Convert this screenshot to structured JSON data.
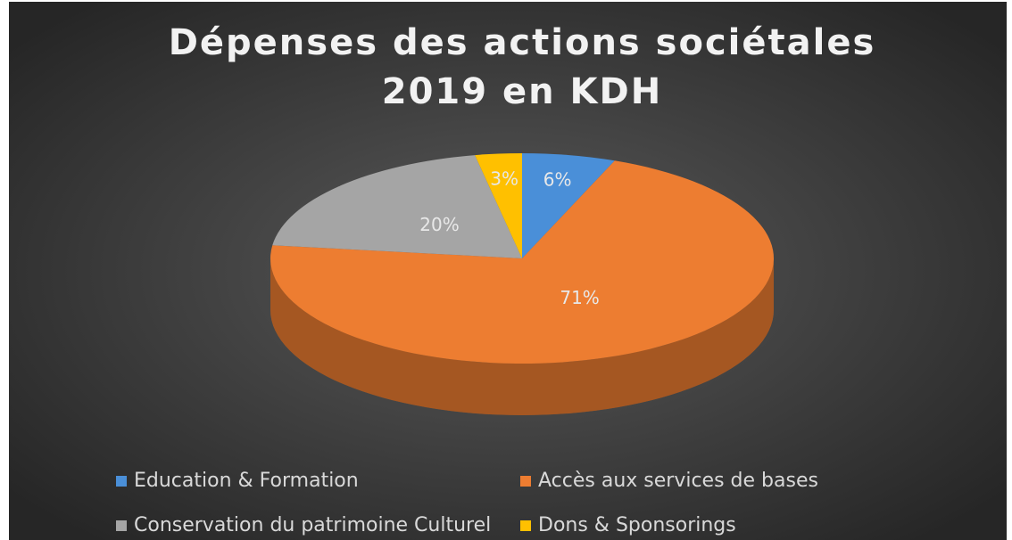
{
  "chart_data": {
    "type": "pie",
    "title": [
      "Dépenses des actions sociétales",
      "2019 en KDH"
    ],
    "categories": [
      "Education & Formation",
      "Accès aux services de bases",
      "Conservation du patrimoine Culturel",
      "Dons & Sponsorings"
    ],
    "values": [
      6,
      71,
      20,
      3
    ],
    "value_labels": [
      "6%",
      "71%",
      "20%",
      "3%"
    ],
    "colors": [
      "#4a8fd8",
      "#ed7d31",
      "#a5a5a5",
      "#ffc000"
    ],
    "legend": "bottom"
  }
}
